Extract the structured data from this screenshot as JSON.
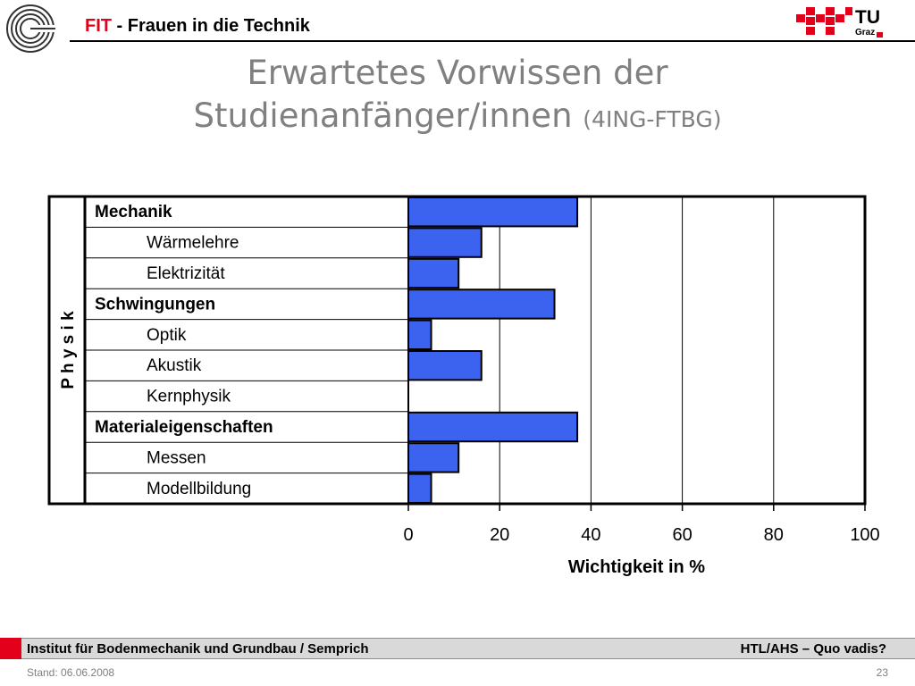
{
  "header": {
    "fit": "FIT",
    "title_rest": " - Frauen in die Technik",
    "logo_tu": "TU",
    "logo_graz": "Graz"
  },
  "title": {
    "line1": "Erwartetes Vorwissen der",
    "line2": "Studienanfänger/innen",
    "sub": "(4ING-FTBG)"
  },
  "chart_data": {
    "type": "bar",
    "orientation": "horizontal",
    "group_label": "P h y s i k",
    "categories": [
      "Mechanik",
      "Wärmelehre",
      "Elektrizität",
      "Schwingungen",
      "Optik",
      "Akustik",
      "Kernphysik",
      "Materialeigenschaften",
      "Messen",
      "Modellbildung"
    ],
    "bold": [
      true,
      false,
      false,
      true,
      false,
      false,
      false,
      true,
      false,
      false
    ],
    "values": [
      37,
      16,
      11,
      32,
      5,
      16,
      0,
      37,
      11,
      5
    ],
    "xticks": [
      "0",
      "20",
      "40",
      "60",
      "80",
      "100"
    ],
    "xlim": [
      0,
      100
    ],
    "xlabel": "Wichtigkeit in %",
    "grid": "vertical",
    "bar_color": "#3b63f0"
  },
  "footer": {
    "left": "Institut für Bodenmechanik und Grundbau / Semprich",
    "right": "HTL/AHS – Quo vadis?",
    "stand": "Stand: 06.06.2008",
    "page": "23"
  }
}
